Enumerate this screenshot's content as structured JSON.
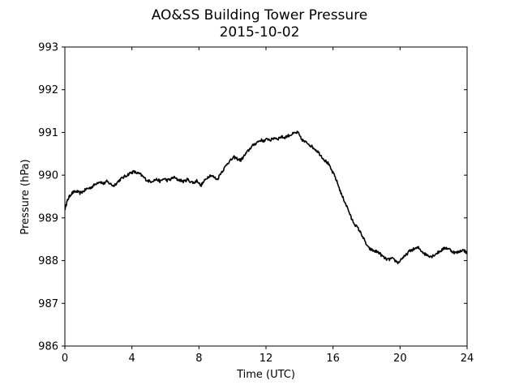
{
  "chart_data": {
    "type": "line",
    "title": "AO&SS Building Tower Pressure",
    "subtitle": "2015-10-02",
    "xlabel": "Time (UTC)",
    "ylabel": "Pressure (hPa)",
    "xlim": [
      0,
      24
    ],
    "ylim": [
      986,
      993
    ],
    "xticks": [
      0,
      4,
      8,
      12,
      16,
      20,
      24
    ],
    "yticks": [
      986,
      987,
      988,
      989,
      990,
      991,
      992,
      993
    ],
    "grid": false,
    "legend": "none",
    "line_color": "#000000",
    "series": [
      {
        "x": [
          0,
          0.1,
          0.2,
          0.35,
          0.5,
          0.7,
          0.9,
          1.1,
          1.3,
          1.5,
          1.7,
          1.9,
          2.1,
          2.3,
          2.5,
          2.7,
          2.9,
          3.1,
          3.3,
          3.5,
          3.7,
          3.9,
          4.1,
          4.3,
          4.5,
          4.7,
          4.9,
          5.1,
          5.3,
          5.5,
          5.7,
          5.9,
          6.1,
          6.3,
          6.5,
          6.7,
          6.9,
          7.1,
          7.3,
          7.5,
          7.7,
          7.9,
          8.1,
          8.3,
          8.5,
          8.7,
          8.9,
          9.1,
          9.3,
          9.5,
          9.7,
          9.9,
          10.1,
          10.3,
          10.5,
          10.7,
          10.9,
          11.1,
          11.3,
          11.5,
          11.7,
          11.9,
          12.1,
          12.3,
          12.5,
          12.7,
          12.9,
          13.1,
          13.3,
          13.5,
          13.7,
          13.9,
          14.1,
          14.3,
          14.5,
          14.7,
          14.9,
          15.1,
          15.3,
          15.5,
          15.7,
          15.9,
          16.1,
          16.3,
          16.5,
          16.7,
          16.9,
          17.1,
          17.3,
          17.5,
          17.7,
          17.9,
          18.1,
          18.3,
          18.5,
          18.7,
          18.9,
          19.1,
          19.3,
          19.5,
          19.7,
          19.9,
          20.1,
          20.3,
          20.5,
          20.7,
          20.9,
          21.1,
          21.3,
          21.5,
          21.7,
          21.9,
          22.1,
          22.3,
          22.5,
          22.7,
          22.9,
          23.1,
          23.3,
          23.5,
          23.7,
          23.9,
          24
        ],
        "y": [
          989.2,
          989.35,
          989.45,
          989.55,
          989.6,
          989.62,
          989.58,
          989.62,
          989.68,
          989.7,
          989.75,
          989.82,
          989.85,
          989.8,
          989.85,
          989.8,
          989.75,
          989.82,
          989.9,
          989.95,
          990.0,
          990.05,
          990.08,
          990.05,
          990.02,
          989.95,
          989.88,
          989.85,
          989.88,
          989.9,
          989.85,
          989.92,
          989.88,
          989.9,
          989.95,
          989.9,
          989.88,
          989.85,
          989.9,
          989.85,
          989.82,
          989.88,
          989.75,
          989.85,
          989.95,
          990.0,
          989.95,
          989.9,
          990.05,
          990.15,
          990.28,
          990.35,
          990.42,
          990.38,
          990.35,
          990.45,
          990.55,
          990.65,
          990.72,
          990.78,
          990.82,
          990.8,
          990.85,
          990.82,
          990.88,
          990.85,
          990.9,
          990.88,
          990.92,
          990.95,
          990.98,
          991.0,
          990.85,
          990.78,
          990.75,
          990.68,
          990.62,
          990.55,
          990.45,
          990.35,
          990.28,
          990.12,
          989.98,
          989.78,
          989.55,
          989.38,
          989.2,
          988.98,
          988.85,
          988.75,
          988.62,
          988.45,
          988.3,
          988.25,
          988.22,
          988.2,
          988.12,
          988.05,
          988.02,
          988.05,
          988.0,
          987.95,
          988.05,
          988.1,
          988.2,
          988.25,
          988.28,
          988.3,
          988.22,
          988.15,
          988.12,
          988.1,
          988.15,
          988.2,
          988.25,
          988.3,
          988.28,
          988.22,
          988.18,
          988.2,
          988.25,
          988.22,
          988.15
        ]
      }
    ]
  }
}
